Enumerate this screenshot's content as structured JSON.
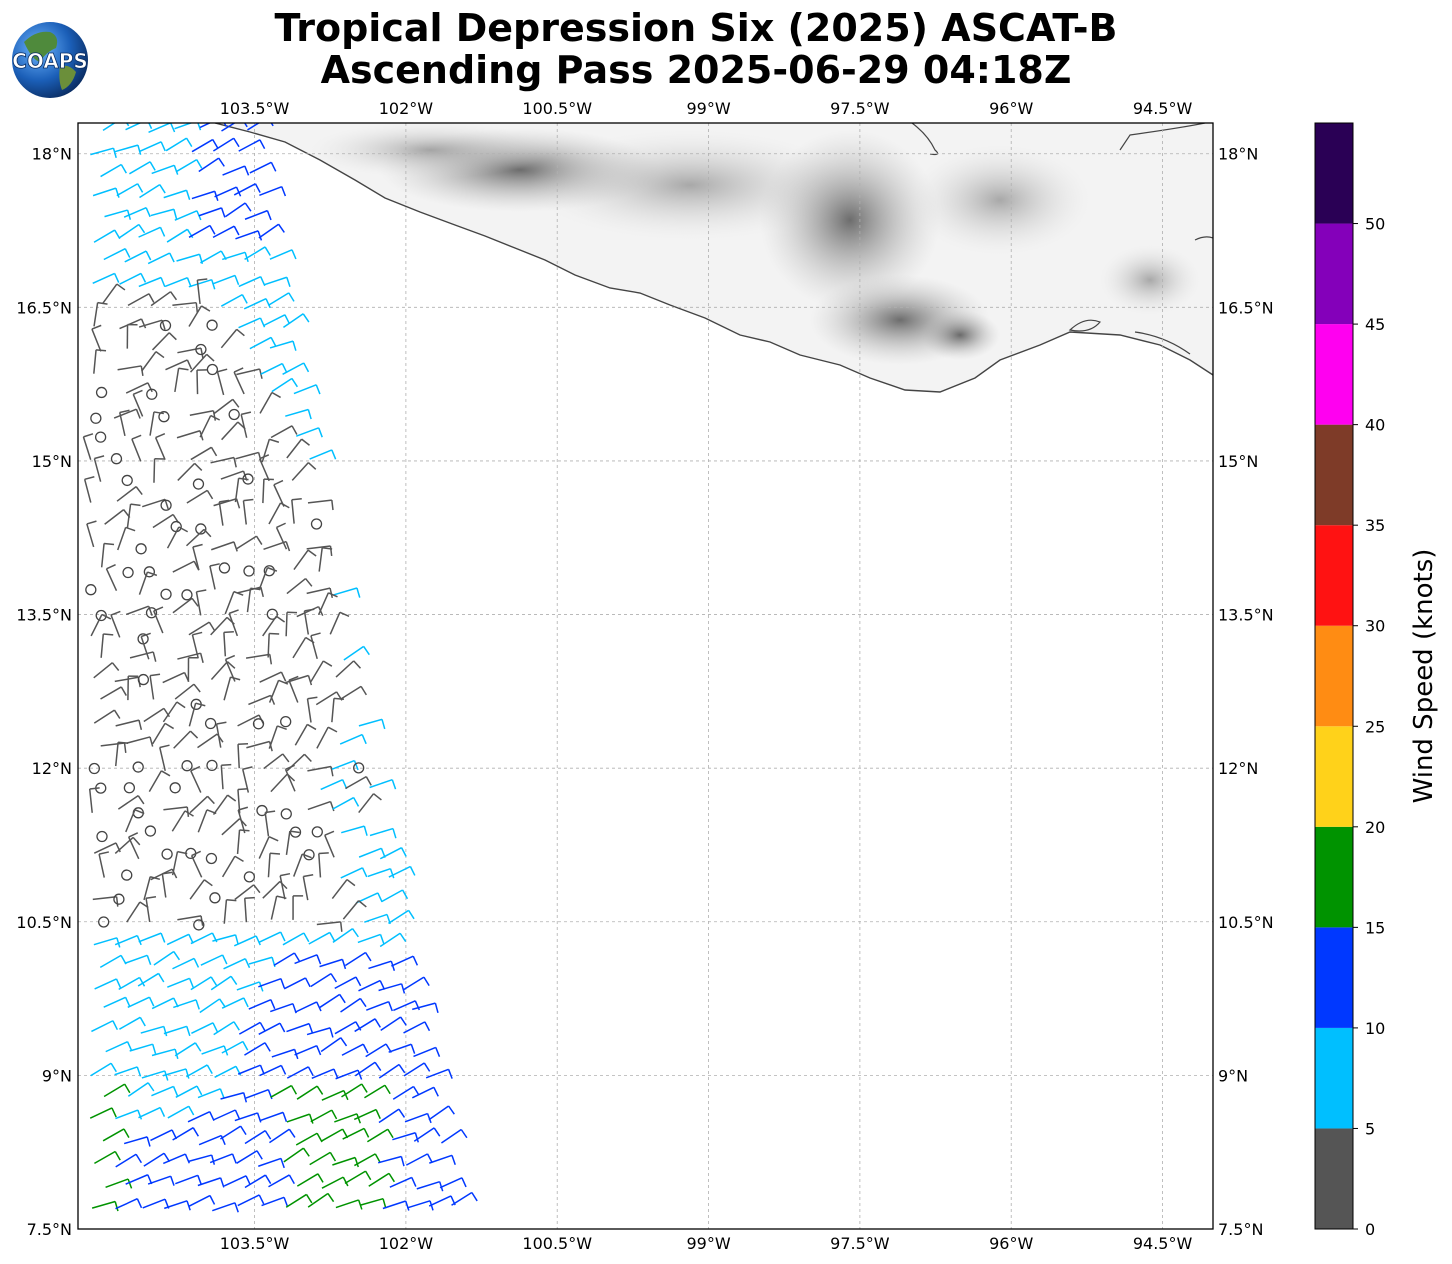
{
  "header": {
    "title_line1": "Tropical Depression Six (2025) ASCAT-B",
    "title_line2": "Ascending Pass 2025-06-29 04:18Z",
    "logo_text": "COAPS"
  },
  "map": {
    "lon_range": [
      -105.25,
      -94.0
    ],
    "lat_range": [
      7.5,
      18.3
    ],
    "lon_ticks": [
      {
        "value": -103.5,
        "label": "103.5°W"
      },
      {
        "value": -102.0,
        "label": "102°W"
      },
      {
        "value": -100.5,
        "label": "100.5°W"
      },
      {
        "value": -99.0,
        "label": "99°W"
      },
      {
        "value": -97.5,
        "label": "97.5°W"
      },
      {
        "value": -96.0,
        "label": "96°W"
      },
      {
        "value": -94.5,
        "label": "94.5°W"
      }
    ],
    "lat_ticks": [
      {
        "value": 7.5,
        "label": "7.5°N"
      },
      {
        "value": 9.0,
        "label": "9°N"
      },
      {
        "value": 10.5,
        "label": "10.5°N"
      },
      {
        "value": 12.0,
        "label": "12°N"
      },
      {
        "value": 13.5,
        "label": "13.5°N"
      },
      {
        "value": 15.0,
        "label": "15°N"
      },
      {
        "value": 16.5,
        "label": "16.5°N"
      },
      {
        "value": 18.0,
        "label": "18°N"
      }
    ],
    "gridlines": true,
    "land_shading": "grayscale terrain",
    "coastline_color": "#444444"
  },
  "colorbar": {
    "title": "Wind Speed (knots)",
    "bins": [
      {
        "from": 0,
        "to": 5,
        "color": "#555555"
      },
      {
        "from": 5,
        "to": 10,
        "color": "#00bfff"
      },
      {
        "from": 10,
        "to": 15,
        "color": "#0038ff"
      },
      {
        "from": 15,
        "to": 20,
        "color": "#009300"
      },
      {
        "from": 20,
        "to": 25,
        "color": "#ffd21a"
      },
      {
        "from": 25,
        "to": 30,
        "color": "#ff8c13"
      },
      {
        "from": 30,
        "to": 35,
        "color": "#ff1212"
      },
      {
        "from": 35,
        "to": 40,
        "color": "#7e3b28"
      },
      {
        "from": 40,
        "to": 45,
        "color": "#ff00f0"
      },
      {
        "from": 45,
        "to": 50,
        "color": "#8400ba"
      },
      {
        "from": 50,
        "to": 55,
        "color": "#2a0055"
      }
    ],
    "tick_labels": [
      "0",
      "5",
      "10",
      "15",
      "20",
      "25",
      "30",
      "35",
      "40",
      "45",
      "50"
    ]
  }
}
